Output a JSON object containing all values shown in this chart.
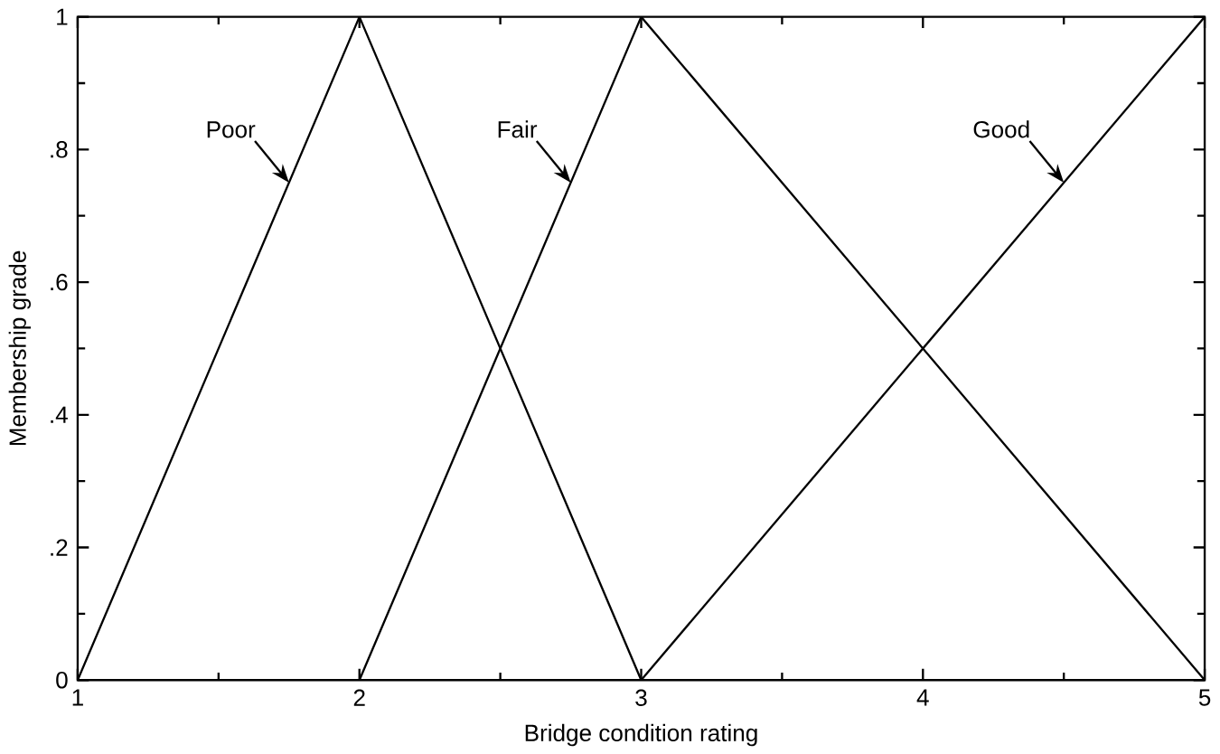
{
  "chart_data": {
    "type": "line",
    "xlabel": "Bridge condition rating",
    "ylabel": "Membership grade",
    "series": [
      {
        "name": "Poor",
        "color": "#000000",
        "x": [
          1,
          2,
          3
        ],
        "values": [
          0,
          1,
          0
        ]
      },
      {
        "name": "Fair",
        "color": "#000000",
        "x": [
          2,
          3,
          5
        ],
        "values": [
          0,
          1,
          0
        ]
      },
      {
        "name": "Good",
        "color": "#000000",
        "x": [
          3,
          5
        ],
        "values": [
          0,
          1
        ]
      }
    ],
    "xlim": [
      1,
      5
    ],
    "xticks": [
      1,
      2,
      3,
      4,
      5
    ],
    "ylim": [
      0,
      1
    ],
    "yticks": [
      0,
      {
        "value": 0.2,
        "label": ".2"
      },
      {
        "value": 0.4,
        "label": ".4"
      },
      {
        "value": 0.6,
        "label": ".6"
      },
      {
        "value": 0.8,
        "label": ".8"
      },
      1
    ],
    "grid": false,
    "legend": false,
    "marker": "none",
    "line_style": "solid"
  }
}
